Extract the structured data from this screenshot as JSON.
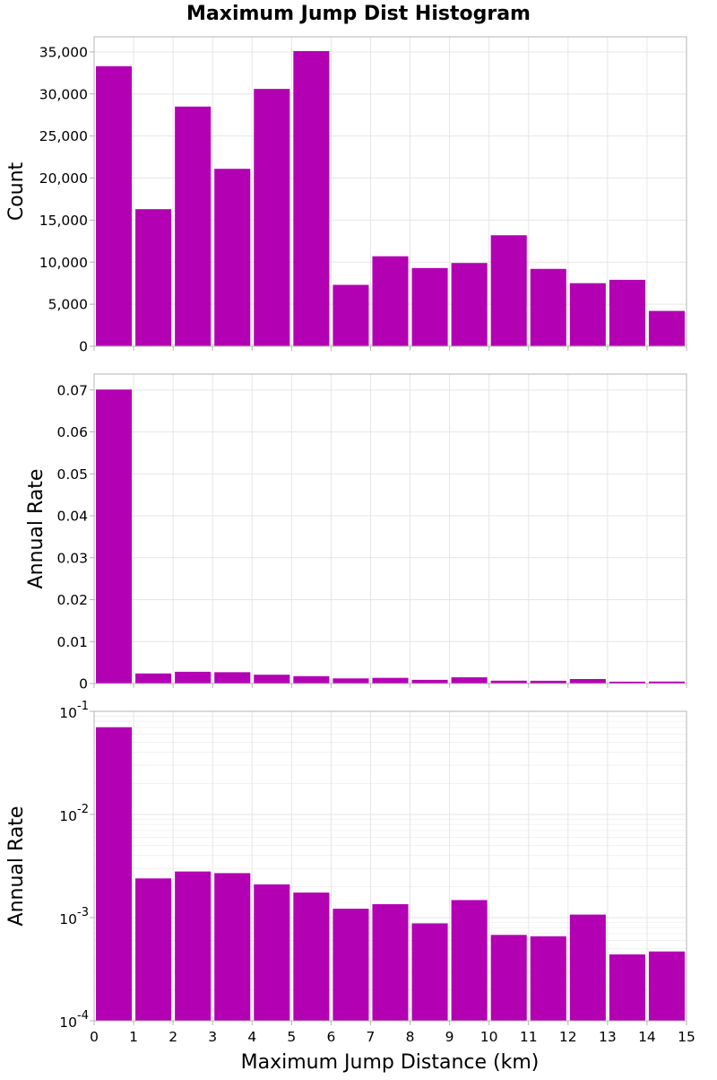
{
  "chart_data": {
    "type": "bar",
    "title": "Maximum Jump Dist Histogram",
    "xlabel": "Maximum Jump Distance (km)",
    "x_tick_labels": [
      "0",
      "1",
      "2",
      "3",
      "4",
      "5",
      "6",
      "7",
      "8",
      "9",
      "10",
      "11",
      "12",
      "13",
      "14",
      "15"
    ],
    "bin_edges": [
      0,
      1,
      2,
      3,
      4,
      5,
      6,
      7,
      8,
      9,
      10,
      11,
      12,
      13,
      14,
      15
    ],
    "bar_color": "#b300b3",
    "grid": true,
    "legend": "none",
    "panels": [
      {
        "ylabel": "Count",
        "scale": "linear",
        "ylim": [
          0,
          36800
        ],
        "y_tick_values": [
          0,
          5000,
          10000,
          15000,
          20000,
          25000,
          30000,
          35000
        ],
        "y_tick_labels": [
          "0",
          "5,000",
          "10,000",
          "15,000",
          "20,000",
          "25,000",
          "30,000",
          "35,000"
        ],
        "values": [
          33300,
          16300,
          28500,
          21100,
          30600,
          35100,
          7300,
          10700,
          9300,
          9900,
          13200,
          9200,
          7500,
          7900,
          4200
        ]
      },
      {
        "ylabel": "Annual Rate",
        "scale": "linear",
        "ylim": [
          0,
          0.0738
        ],
        "y_tick_values": [
          0,
          0.01,
          0.02,
          0.03,
          0.04,
          0.05,
          0.06,
          0.07
        ],
        "y_tick_labels": [
          "0",
          "0.01",
          "0.02",
          "0.03",
          "0.04",
          "0.05",
          "0.06",
          "0.07"
        ],
        "values": [
          0.0701,
          0.0024,
          0.0028,
          0.0027,
          0.0021,
          0.00175,
          0.00122,
          0.00135,
          0.00088,
          0.00148,
          0.00068,
          0.00066,
          0.00107,
          0.00044,
          0.00047
        ]
      },
      {
        "ylabel": "Annual Rate",
        "scale": "log",
        "ylim": [
          0.0001,
          0.1
        ],
        "y_tick_values": [
          0.0001,
          0.001,
          0.01,
          0.1
        ],
        "y_tick_labels": [
          {
            "base": "10",
            "exp": "-4"
          },
          {
            "base": "10",
            "exp": "-3"
          },
          {
            "base": "10",
            "exp": "-2"
          },
          {
            "base": "10",
            "exp": "-1"
          }
        ],
        "values": [
          0.0701,
          0.0024,
          0.0028,
          0.0027,
          0.0021,
          0.00175,
          0.00122,
          0.00135,
          0.00088,
          0.00148,
          0.00068,
          0.00066,
          0.00107,
          0.00044,
          0.00047
        ]
      }
    ]
  }
}
